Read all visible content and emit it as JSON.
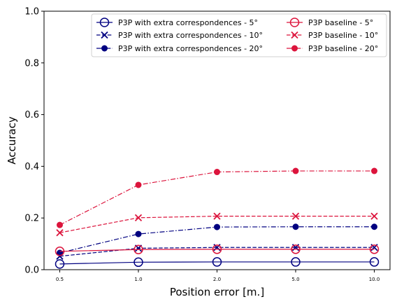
{
  "chart_data": {
    "type": "line",
    "title": "",
    "xlabel": "Position error [m.]",
    "ylabel": "Accuracy",
    "categories": [
      "0.5",
      "1.0",
      "2.0",
      "5.0",
      "10.0"
    ],
    "ylim": [
      0,
      1.0
    ],
    "yticks": [
      "0.0",
      "0.2",
      "0.4",
      "0.6",
      "0.8",
      "1.0"
    ],
    "grid": false,
    "legend_position": "top-right",
    "legend_columns": 2,
    "series": [
      {
        "name": "P3P with extra correspondences - 5°",
        "color": "#000080",
        "linestyle": "solid",
        "marker": "open-circle",
        "values": [
          0.022,
          0.029,
          0.03,
          0.03,
          0.03
        ]
      },
      {
        "name": "P3P with extra correspondences - 10°",
        "color": "#000080",
        "linestyle": "dashed",
        "marker": "x",
        "values": [
          0.052,
          0.083,
          0.086,
          0.086,
          0.086
        ]
      },
      {
        "name": "P3P with extra correspondences - 20°",
        "color": "#000080",
        "linestyle": "dashdot",
        "marker": "filled-circle",
        "values": [
          0.065,
          0.138,
          0.165,
          0.166,
          0.166
        ]
      },
      {
        "name": "P3P baseline - 5°",
        "color": "#dc143c",
        "linestyle": "solid",
        "marker": "open-circle",
        "values": [
          0.071,
          0.078,
          0.079,
          0.079,
          0.079
        ]
      },
      {
        "name": "P3P baseline - 10°",
        "color": "#dc143c",
        "linestyle": "dashed",
        "marker": "x",
        "values": [
          0.143,
          0.201,
          0.207,
          0.207,
          0.207
        ]
      },
      {
        "name": "P3P baseline - 20°",
        "color": "#dc143c",
        "linestyle": "dashdot",
        "marker": "filled-circle",
        "values": [
          0.173,
          0.328,
          0.378,
          0.382,
          0.382
        ]
      }
    ]
  }
}
